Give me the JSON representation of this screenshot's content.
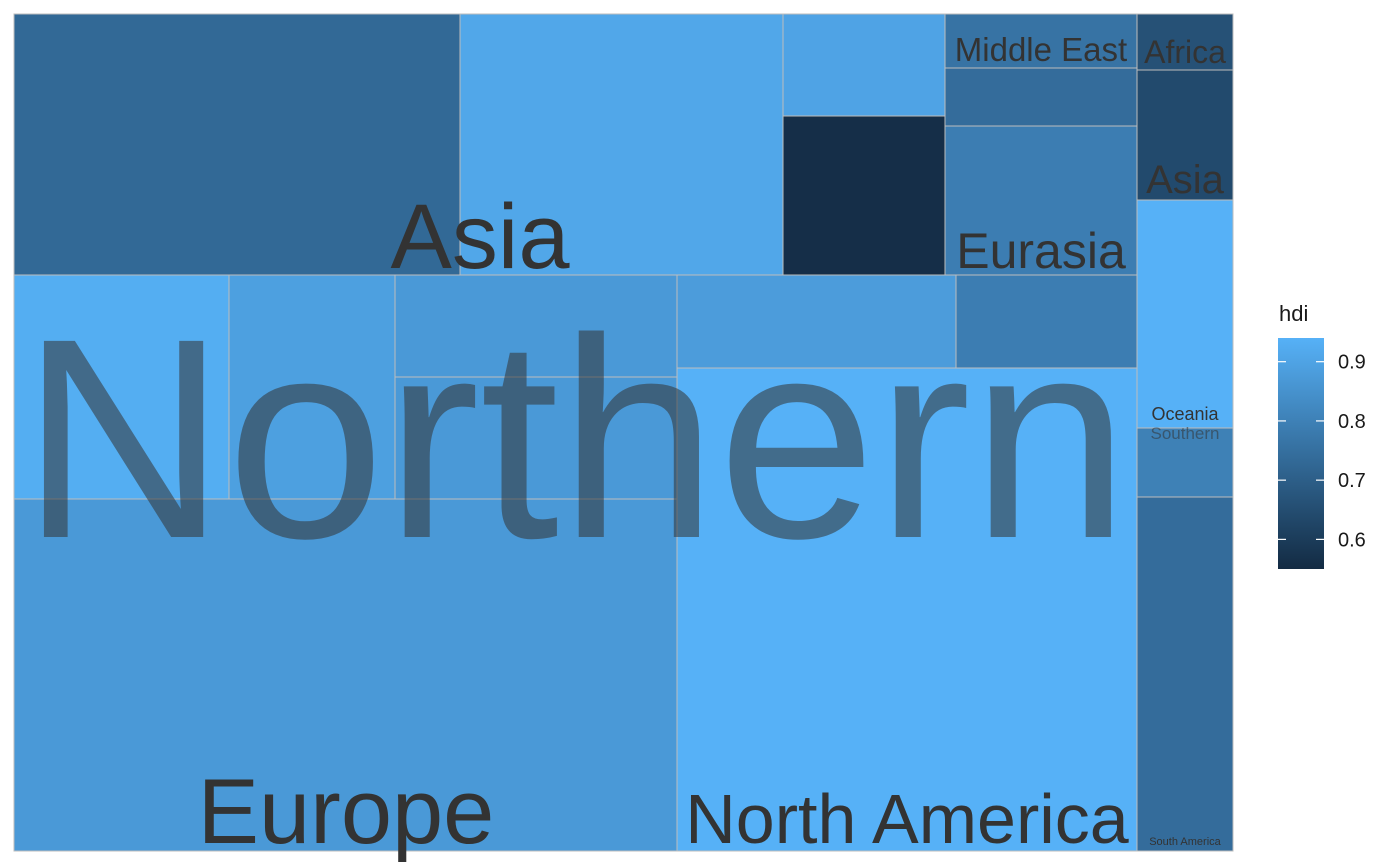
{
  "chart_data": {
    "type": "treemap",
    "fill_variable": "hdi",
    "color_scale": {
      "low_value": 0.55,
      "high_value": 0.94,
      "low_color": "#132B43",
      "high_color": "#56B1F7"
    },
    "legend": {
      "title": "hdi",
      "placement": "right",
      "ticks": [
        "0.9",
        "0.8",
        "0.7",
        "0.6"
      ],
      "tick_values": [
        0.9,
        0.8,
        0.7,
        0.6
      ]
    },
    "hemisphere_labels": [
      "Northern",
      "Southern"
    ],
    "region_labels": [
      "Asia",
      "Middle East",
      "Africa",
      "Asia",
      "Eurasia",
      "Europe",
      "North America",
      "Oceania",
      "South America"
    ],
    "tiles": [
      {
        "hemisphere": "Northern",
        "region": "Asia",
        "hdi": 0.73
      },
      {
        "hemisphere": "Northern",
        "region": "Asia",
        "hdi": 0.91
      },
      {
        "hemisphere": "Northern",
        "region": "Asia",
        "hdi": 0.9
      },
      {
        "hemisphere": "Northern",
        "region": "Asia",
        "hdi": 0.56
      },
      {
        "hemisphere": "Northern",
        "region": "Middle East",
        "hdi": 0.76
      },
      {
        "hemisphere": "Northern",
        "region": "Middle East",
        "hdi": 0.74
      },
      {
        "hemisphere": "Northern",
        "region": "Eurasia",
        "hdi": 0.79
      },
      {
        "hemisphere": "Northern",
        "region": "Africa",
        "hdi": 0.66
      },
      {
        "hemisphere": "Northern",
        "region": "Africa",
        "hdi": 0.64
      },
      {
        "hemisphere": "Northern",
        "region": "Europe",
        "hdi": 0.93
      },
      {
        "hemisphere": "Northern",
        "region": "Europe",
        "hdi": 0.89
      },
      {
        "hemisphere": "Northern",
        "region": "Europe",
        "hdi": 0.87
      },
      {
        "hemisphere": "Northern",
        "region": "Europe",
        "hdi": 0.87
      },
      {
        "hemisphere": "Northern",
        "region": "Europe",
        "hdi": 0.88
      },
      {
        "hemisphere": "Northern",
        "region": "Europe",
        "hdi": 0.79
      },
      {
        "hemisphere": "Northern",
        "region": "Europe",
        "hdi": 0.87
      },
      {
        "hemisphere": "Northern",
        "region": "North America",
        "hdi": 0.94
      },
      {
        "hemisphere": "Southern",
        "region": "Oceania",
        "hdi": 0.94
      },
      {
        "hemisphere": "Southern",
        "region": "Oceania",
        "hdi": 0.8
      },
      {
        "hemisphere": "Southern",
        "region": "South America",
        "hdi": 0.74
      }
    ]
  }
}
